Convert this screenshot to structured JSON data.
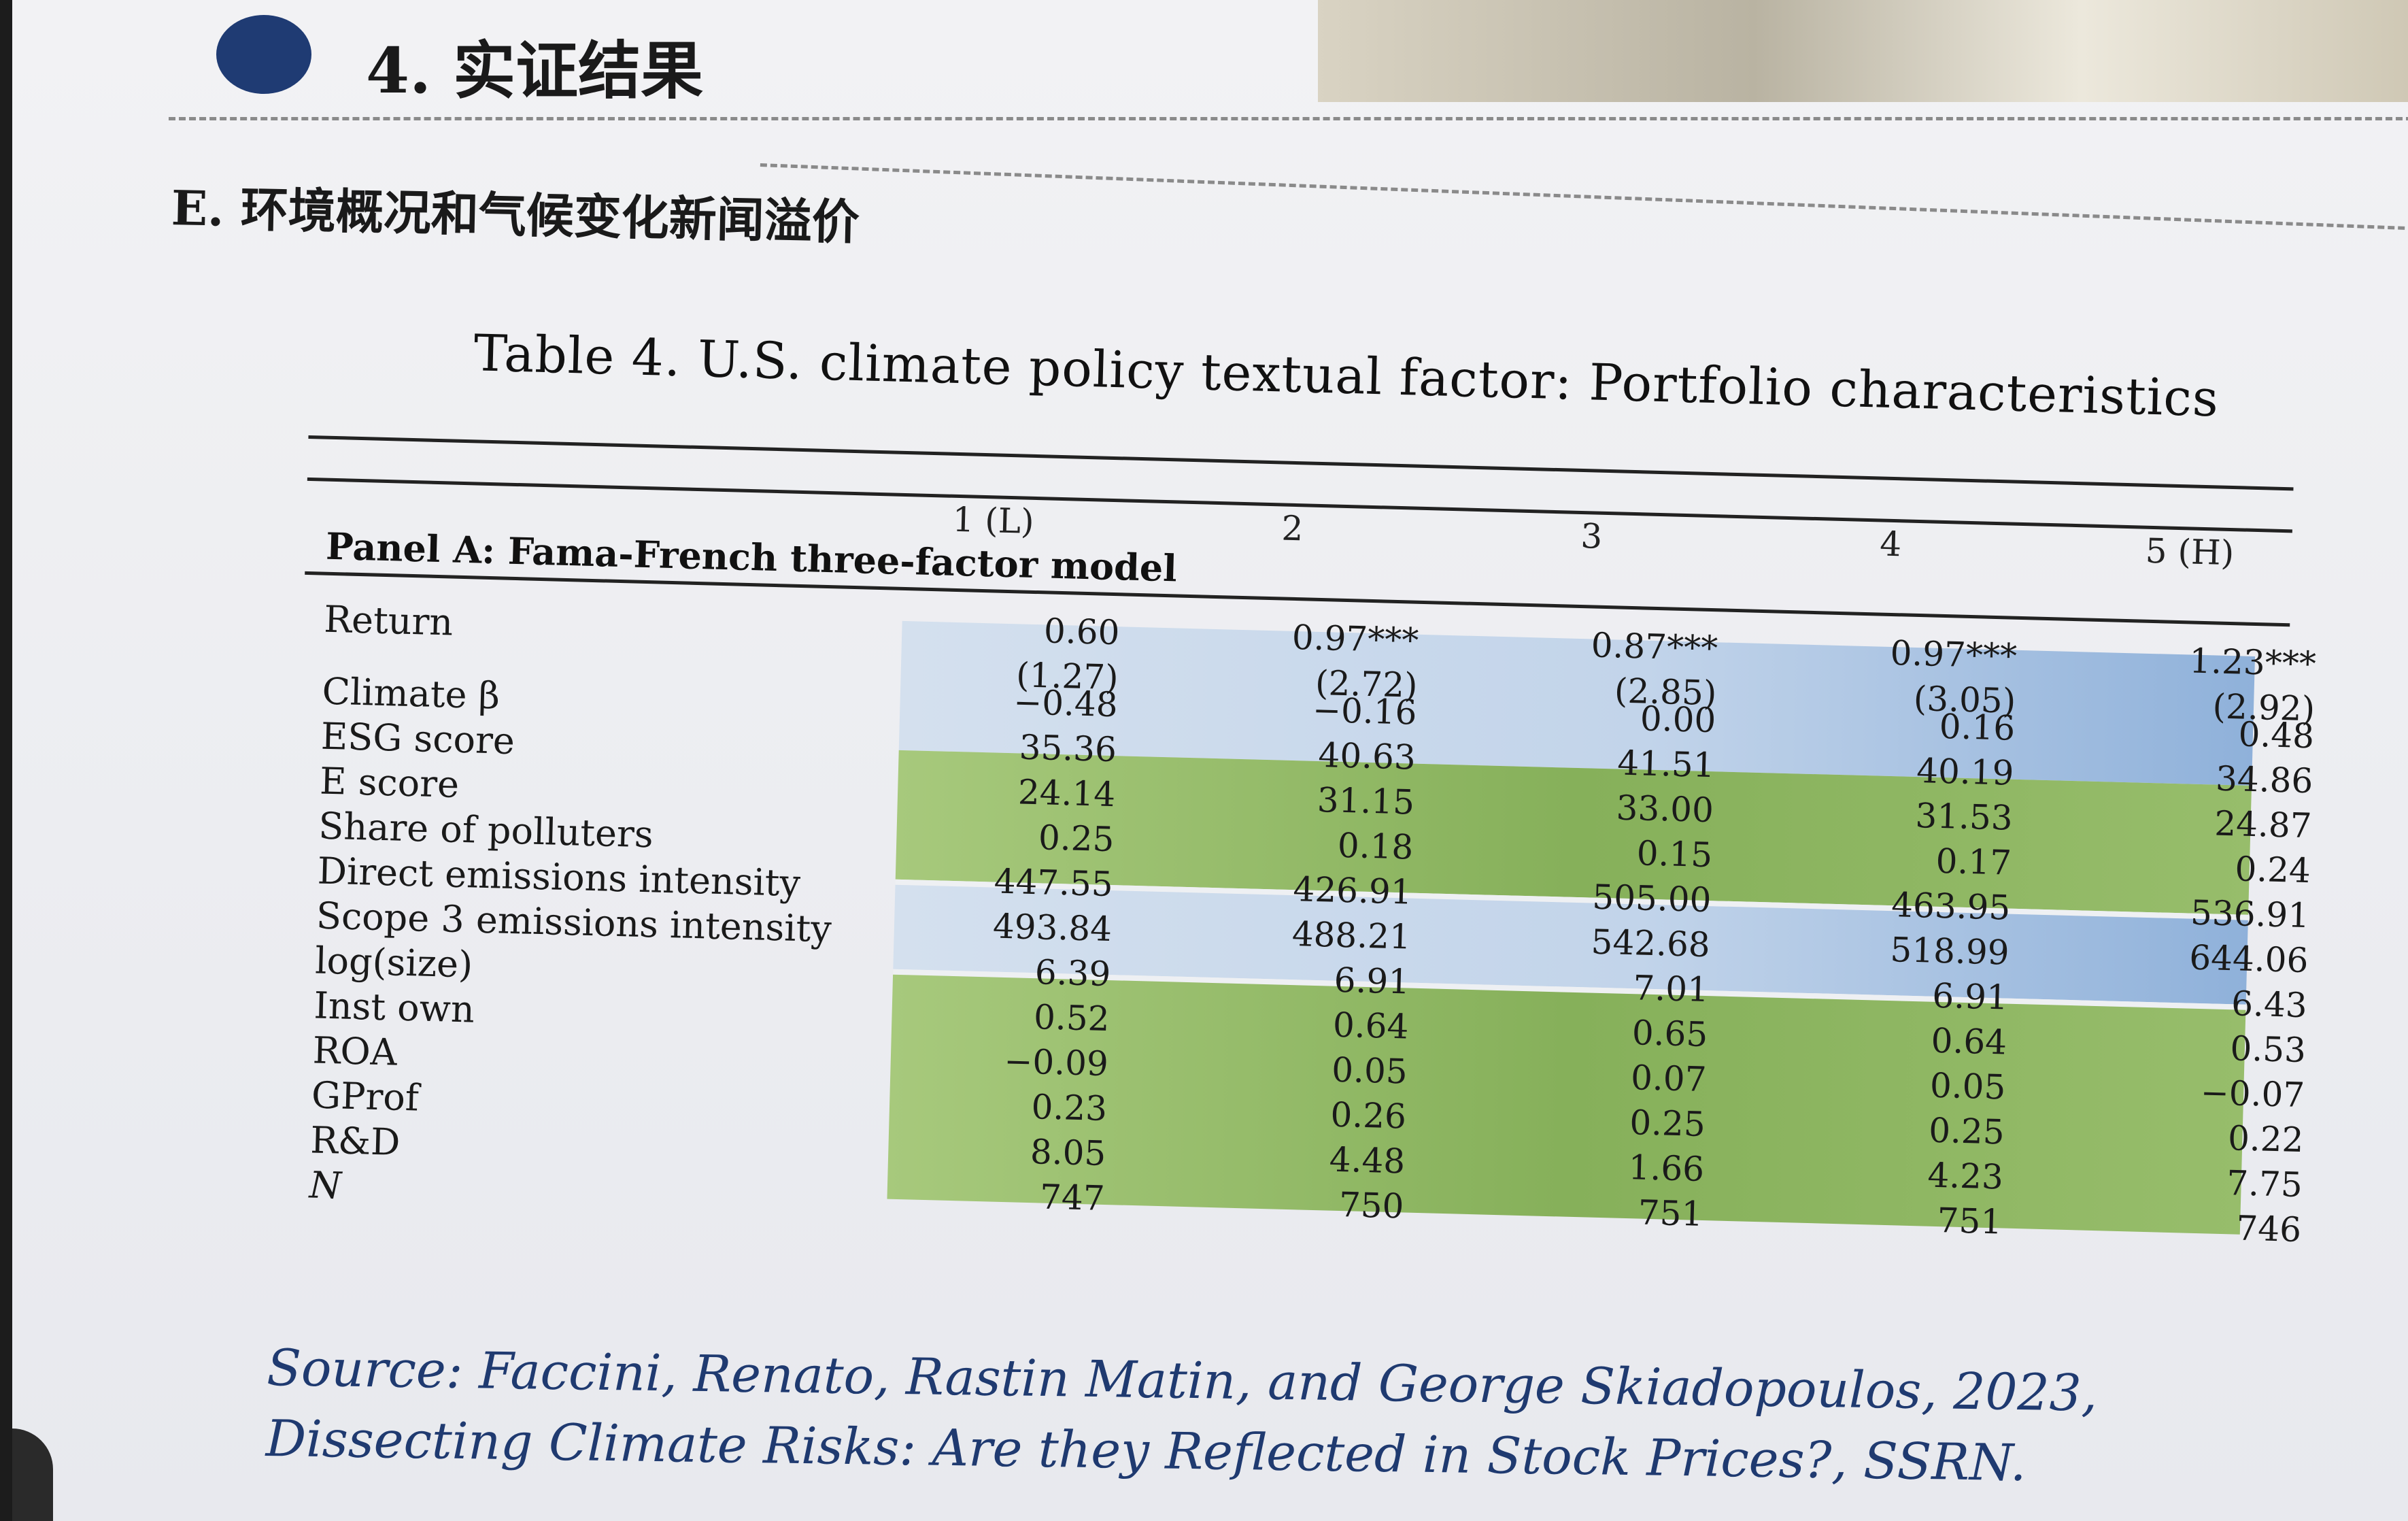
{
  "section_heading": "4. 实证结果",
  "subheading": "E. 环境概况和气候变化新闻溢价",
  "table": {
    "caption": "Table 4.  U.S. climate policy textual factor: Portfolio characteristics",
    "columns": [
      "1 (L)",
      "2",
      "3",
      "4",
      "5 (H)"
    ],
    "panel_label": "Panel A: Fama-French three-factor model",
    "rows": [
      {
        "label": "Return",
        "values": [
          "0.60",
          "0.97***",
          "0.87***",
          "0.97***",
          "1.23***"
        ]
      },
      {
        "label": "",
        "values": [
          "(1.27)",
          "(2.72)",
          "(2.85)",
          "(3.05)",
          "(2.92)"
        ]
      },
      {
        "label": "Climate β",
        "values": [
          "−0.48",
          "−0.16",
          "0.00",
          "0.16",
          "0.48"
        ]
      },
      {
        "label": "ESG score",
        "values": [
          "35.36",
          "40.63",
          "41.51",
          "40.19",
          "34.86"
        ]
      },
      {
        "label": "E score",
        "values": [
          "24.14",
          "31.15",
          "33.00",
          "31.53",
          "24.87"
        ]
      },
      {
        "label": "Share of polluters",
        "values": [
          "0.25",
          "0.18",
          "0.15",
          "0.17",
          "0.24"
        ]
      },
      {
        "label": "Direct emissions intensity",
        "values": [
          "447.55",
          "426.91",
          "505.00",
          "463.95",
          "536.91"
        ]
      },
      {
        "label": "Scope 3 emissions intensity",
        "values": [
          "493.84",
          "488.21",
          "542.68",
          "518.99",
          "644.06"
        ]
      },
      {
        "label": "log(size)",
        "values": [
          "6.39",
          "6.91",
          "7.01",
          "6.91",
          "6.43"
        ]
      },
      {
        "label": "Inst own",
        "values": [
          "0.52",
          "0.64",
          "0.65",
          "0.64",
          "0.53"
        ]
      },
      {
        "label": "ROA",
        "values": [
          "−0.09",
          "0.05",
          "0.07",
          "0.05",
          "−0.07"
        ]
      },
      {
        "label": "GProf",
        "values": [
          "0.23",
          "0.26",
          "0.25",
          "0.25",
          "0.22"
        ]
      },
      {
        "label": "R&D",
        "values": [
          "8.05",
          "4.48",
          "1.66",
          "4.23",
          "7.75"
        ]
      },
      {
        "label": "N",
        "values": [
          "747",
          "750",
          "751",
          "751",
          "746"
        ]
      }
    ]
  },
  "source_text": "Source: Faccini, Renato, Rastin Matin, and George Skiadopoulos, 2023, Dissecting Climate Risks: Are they Reflected in Stock Prices?, SSRN.",
  "colors": {
    "bullet": "#1f3b73",
    "blue_band": "#b8cde8",
    "green_band": "#8fb862",
    "source_text": "#1f3a70"
  }
}
